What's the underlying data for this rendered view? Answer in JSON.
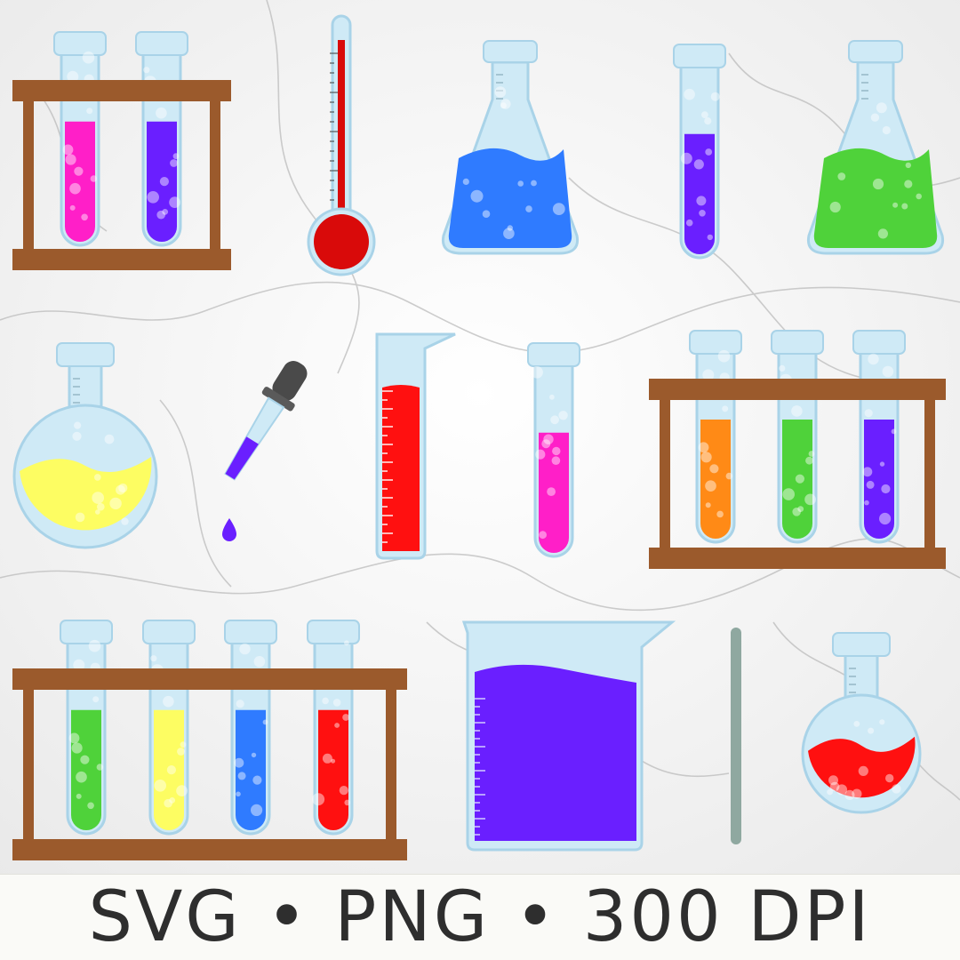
{
  "banner": {
    "text": "SVG • PNG • 300 DPI"
  },
  "palette": {
    "glass": "#cfeaf6",
    "glass_edge": "#a9d3e8",
    "wood": "#9b5a2c",
    "pink": "#ff1fc8",
    "violet": "#6a1fff",
    "blue": "#2f7bff",
    "green": "#4fd23a",
    "yellow": "#fdfd62",
    "orange": "#ff8a16",
    "red": "#ff1010",
    "dark_red": "#d90a0a",
    "dropper_bulb": "#4a4a4a",
    "stirring_rod": "#8fa8a0"
  },
  "items": [
    {
      "name": "test-tube-rack-2",
      "kind": "rack",
      "liquids": [
        "pink",
        "violet"
      ]
    },
    {
      "name": "thermometer",
      "kind": "thermometer",
      "liquid": "dark_red"
    },
    {
      "name": "erlenmeyer-flask-blue",
      "kind": "erlenmeyer",
      "liquid": "blue"
    },
    {
      "name": "test-tube-violet",
      "kind": "tube",
      "liquid": "violet"
    },
    {
      "name": "erlenmeyer-flask-green",
      "kind": "erlenmeyer",
      "liquid": "green"
    },
    {
      "name": "round-flask-yellow",
      "kind": "round-flask",
      "liquid": "yellow"
    },
    {
      "name": "dropper",
      "kind": "dropper",
      "liquid": "violet"
    },
    {
      "name": "graduated-cylinder",
      "kind": "cylinder",
      "liquid": "red"
    },
    {
      "name": "test-tube-pink",
      "kind": "tube",
      "liquid": "pink"
    },
    {
      "name": "test-tube-rack-3",
      "kind": "rack",
      "liquids": [
        "orange",
        "green",
        "violet"
      ]
    },
    {
      "name": "test-tube-rack-4",
      "kind": "rack",
      "liquids": [
        "green",
        "yellow",
        "blue",
        "red"
      ]
    },
    {
      "name": "beaker",
      "kind": "beaker",
      "liquid": "violet"
    },
    {
      "name": "stirring-rod",
      "kind": "rod"
    },
    {
      "name": "round-flask-red",
      "kind": "round-flask",
      "liquid": "red"
    }
  ]
}
